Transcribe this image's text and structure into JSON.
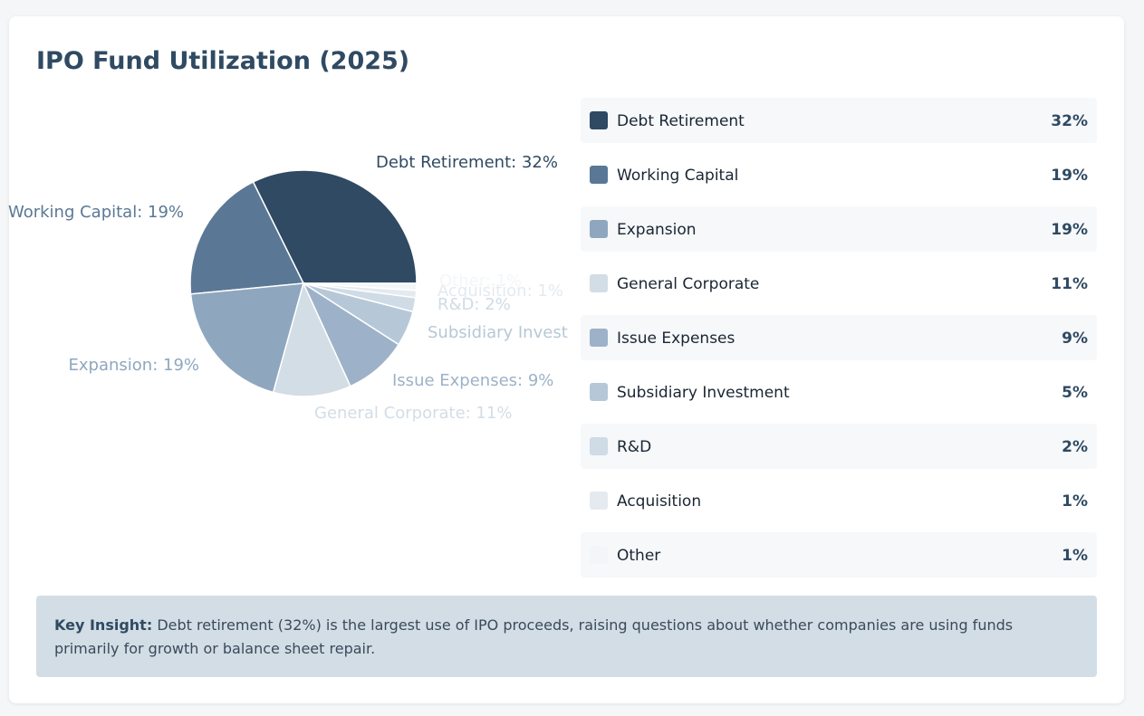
{
  "title": "IPO Fund Utilization (2025)",
  "insight": {
    "label": "Key Insight:",
    "text": "Debt retirement (32%) is the largest use of IPO proceeds, raising questions about whether companies are using funds primarily for growth or balance sheet repair."
  },
  "chart_data": {
    "type": "pie",
    "title": "IPO Fund Utilization (2025)",
    "categories": [
      "Debt Retirement",
      "Working Capital",
      "Expansion",
      "General Corporate",
      "Issue Expenses",
      "Subsidiary Investment",
      "R&D",
      "Acquisition",
      "Other"
    ],
    "values": [
      32,
      19,
      19,
      11,
      9,
      5,
      2,
      1,
      1
    ],
    "value_labels": [
      "32%",
      "19%",
      "19%",
      "11%",
      "9%",
      "5%",
      "2%",
      "1%",
      "1%"
    ],
    "slice_labels": [
      "Debt Retirement: 32%",
      "Working Capital: 19%",
      "Expansion: 19%",
      "General Corporate: 11%",
      "Issue Expenses: 9%",
      "Subsidiary Invest",
      "R&D: 2%",
      "Acquisition: 1%",
      "Other: 1%"
    ],
    "colors": [
      "#2f4a62",
      "#5a7896",
      "#8ea7bf",
      "#d3dde6",
      "#9db2c8",
      "#b6c8d8",
      "#cfdbe5",
      "#e4eaf0",
      "#f3f6f9"
    ],
    "label_colors": [
      "#2f4a62",
      "#5a7896",
      "#8ea7bf",
      "#d3dde6",
      "#9db2c8",
      "#b6c8d8",
      "#cfdbe5",
      "#e4eaf0",
      "#f3f6f9"
    ],
    "legend_position": "right"
  }
}
